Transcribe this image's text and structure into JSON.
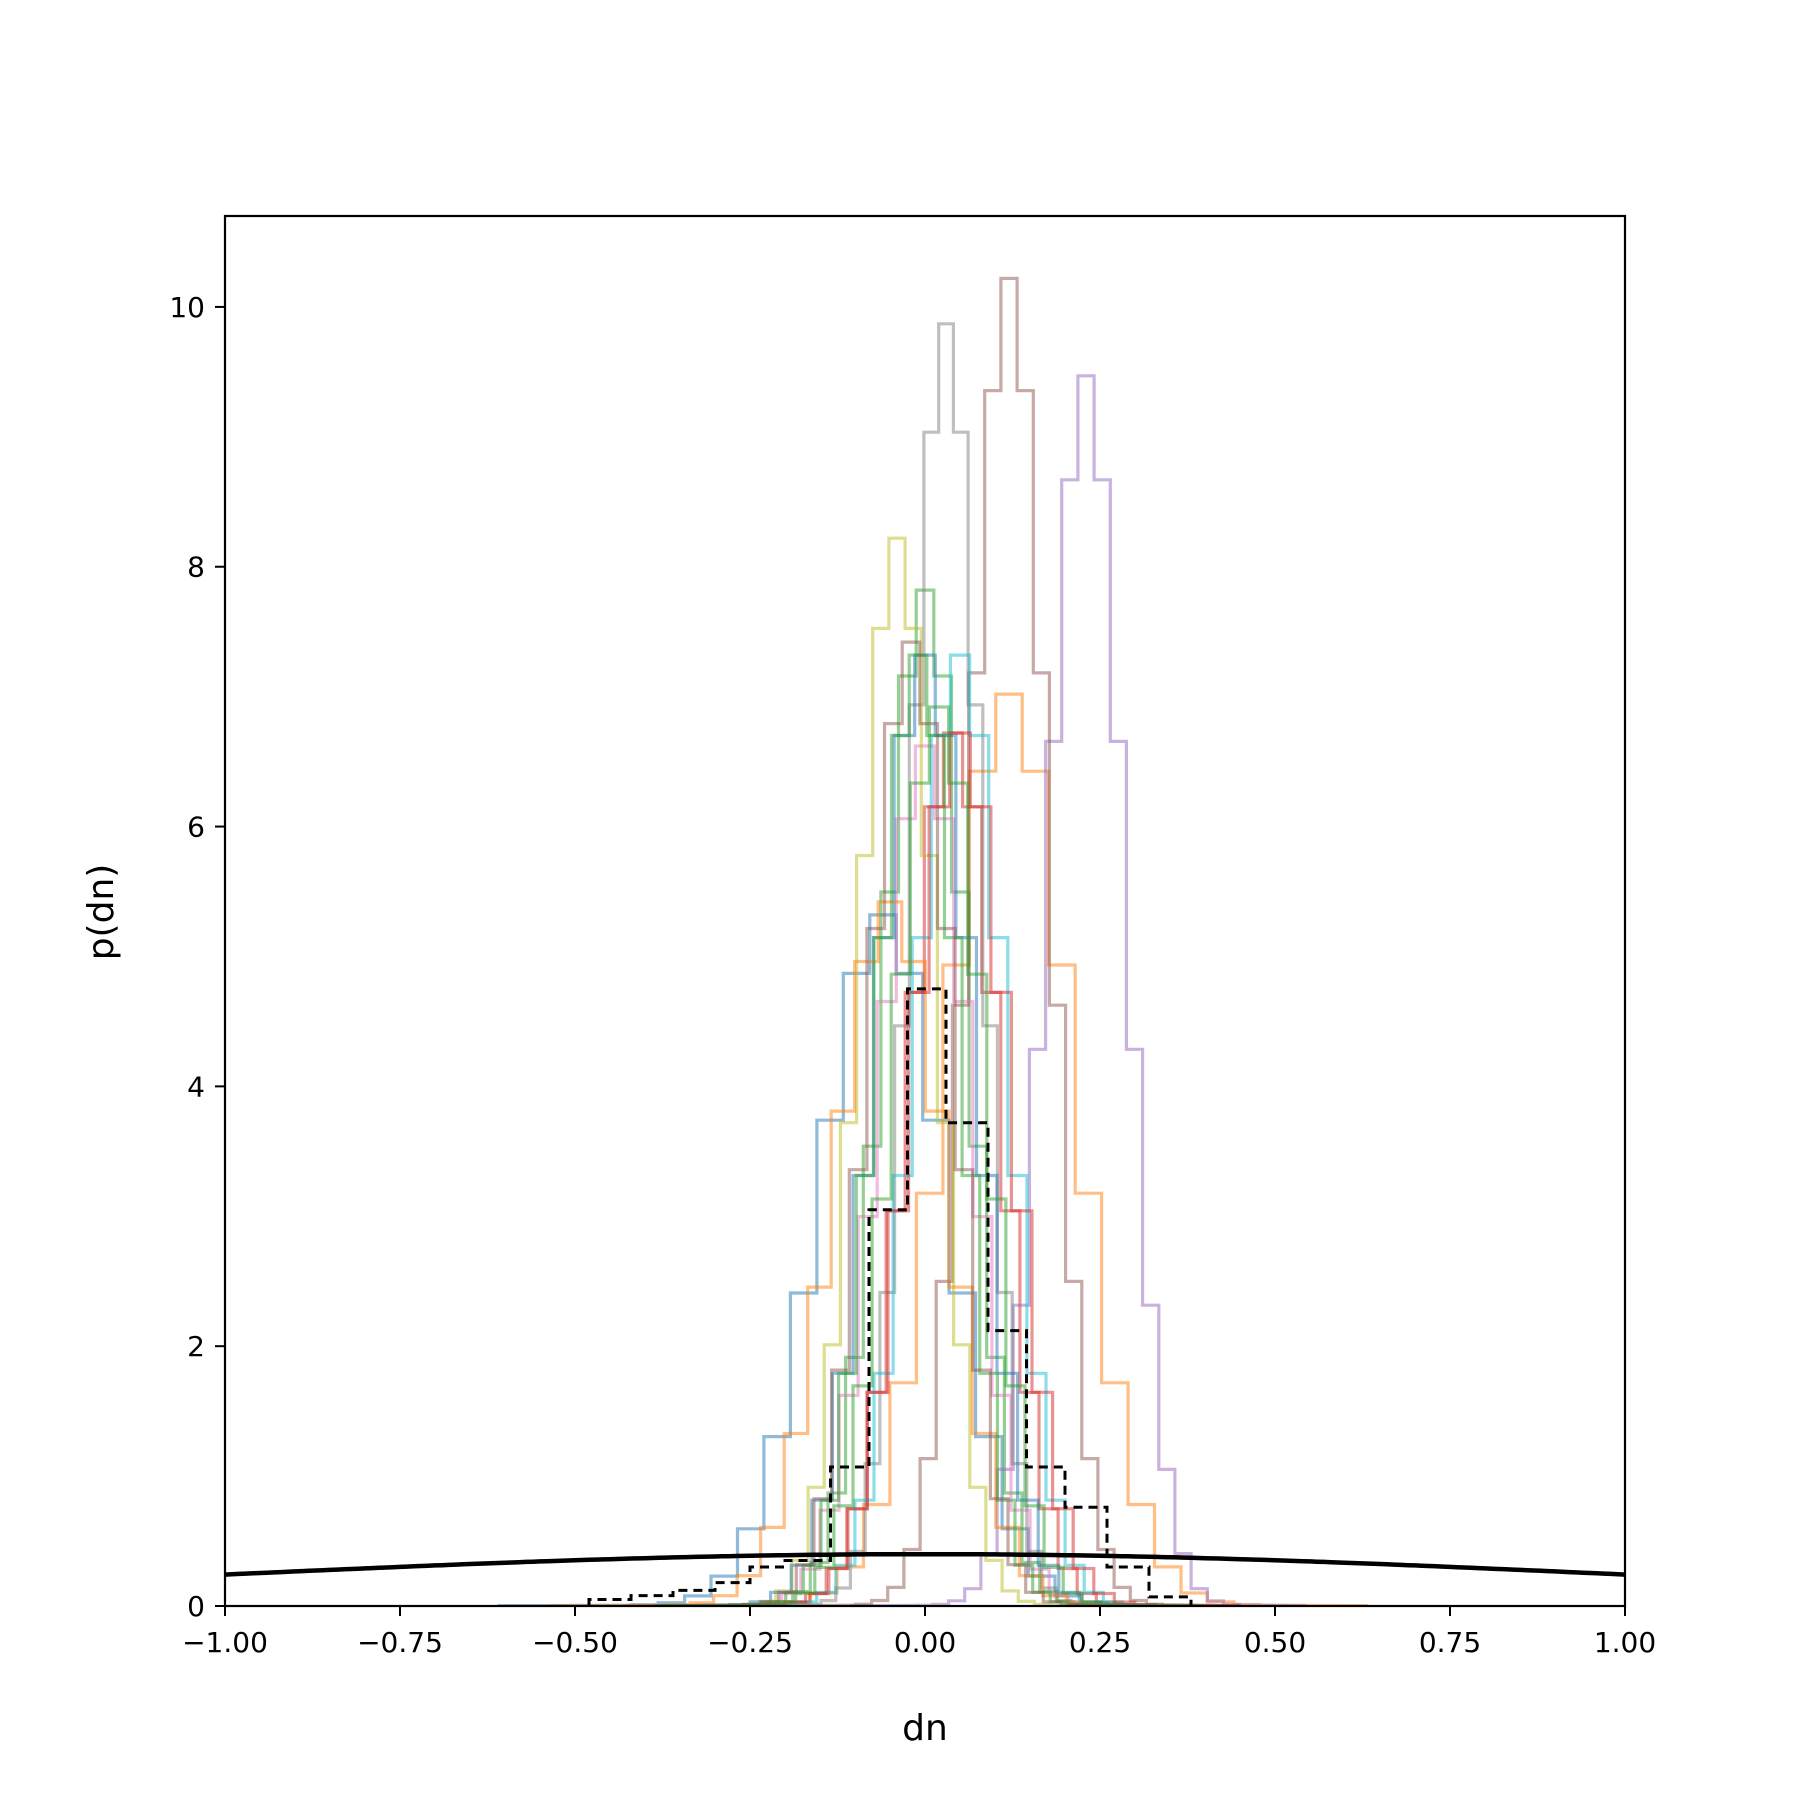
{
  "chart_data": {
    "type": "line",
    "title": "",
    "xlabel": "dn",
    "ylabel": "p(dn)",
    "xlim": [
      -1.0,
      1.0
    ],
    "ylim": [
      0,
      10.7
    ],
    "grid": false,
    "legend": "none",
    "xticks": [
      -1.0,
      -0.75,
      -0.5,
      -0.25,
      0.0,
      0.25,
      0.5,
      0.75,
      1.0
    ],
    "xtick_labels": [
      "−1.00",
      "−0.75",
      "−0.50",
      "−0.25",
      "0.00",
      "0.25",
      "0.50",
      "0.75",
      "1.00"
    ],
    "yticks": [
      0,
      2,
      4,
      6,
      8,
      10
    ],
    "ytick_labels": [
      "0",
      "2",
      "4",
      "6",
      "8",
      "10"
    ],
    "prior": {
      "style": "solid",
      "color": "#000000",
      "mean": 0.0,
      "sigma": 1.0,
      "x": [
        -1.0,
        -0.75,
        -0.5,
        -0.25,
        0.0,
        0.25,
        0.5,
        0.75,
        1.0
      ],
      "y": [
        0.242,
        0.301,
        0.352,
        0.387,
        0.399,
        0.387,
        0.352,
        0.301,
        0.242
      ]
    },
    "combined": {
      "style": "dashed",
      "color": "#000000",
      "edges": [
        -0.48,
        -0.42,
        -0.36,
        -0.3,
        -0.25,
        -0.2,
        -0.135,
        -0.08,
        -0.025,
        0.03,
        0.09,
        0.145,
        0.2,
        0.26,
        0.32,
        0.38
      ],
      "values": [
        0.05,
        0.08,
        0.12,
        0.18,
        0.3,
        0.35,
        1.07,
        3.05,
        4.75,
        3.72,
        2.12,
        1.07,
        0.76,
        0.3,
        0.07
      ]
    },
    "series": [
      {
        "color": "#1f77b4",
        "center": -0.06,
        "sigma": 0.09,
        "peak": 5.3
      },
      {
        "color": "#ff7f0e",
        "center": 0.12,
        "sigma": 0.09,
        "peak": 7.0
      },
      {
        "color": "#2ca02c",
        "center": 0.0,
        "sigma": 0.06,
        "peak": 7.8
      },
      {
        "color": "#d62728",
        "center": 0.04,
        "sigma": 0.065,
        "peak": 6.7
      },
      {
        "color": "#9467bd",
        "center": 0.23,
        "sigma": 0.055,
        "peak": 9.45
      },
      {
        "color": "#8c564b",
        "center": 0.12,
        "sigma": 0.055,
        "peak": 10.2
      },
      {
        "color": "#e377c2",
        "center": 0.0,
        "sigma": 0.065,
        "peak": 6.6
      },
      {
        "color": "#7f7f7f",
        "center": 0.03,
        "sigma": 0.05,
        "peak": 9.85
      },
      {
        "color": "#bcbd22",
        "center": -0.04,
        "sigma": 0.055,
        "peak": 8.2
      },
      {
        "color": "#17becf",
        "center": 0.05,
        "sigma": 0.065,
        "peak": 7.3
      },
      {
        "color": "#1f77b4",
        "center": 0.0,
        "sigma": 0.07,
        "peak": 7.3
      },
      {
        "color": "#ff7f0e",
        "center": -0.05,
        "sigma": 0.08,
        "peak": 5.4
      },
      {
        "color": "#2ca02c",
        "center": -0.01,
        "sigma": 0.06,
        "peak": 7.3
      },
      {
        "color": "#d62728",
        "center": 0.05,
        "sigma": 0.07,
        "peak": 6.7
      },
      {
        "color": "#8c564b",
        "center": -0.02,
        "sigma": 0.06,
        "peak": 7.4
      },
      {
        "color": "#2ca02c",
        "center": 0.02,
        "sigma": 0.065,
        "peak": 6.9
      }
    ]
  }
}
